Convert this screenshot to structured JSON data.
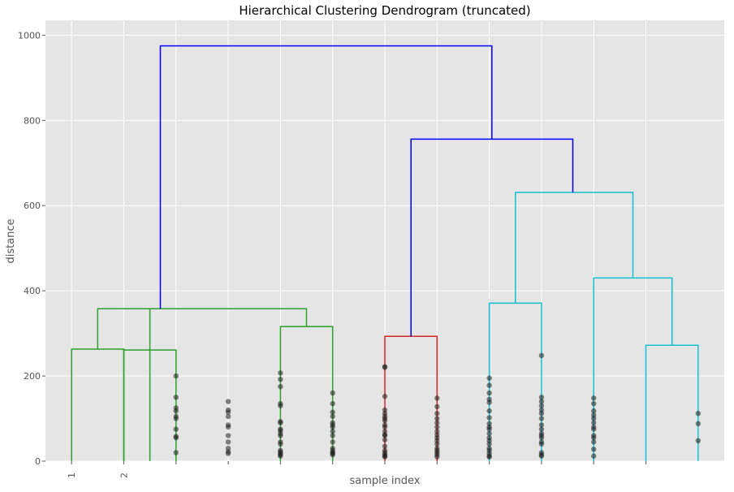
{
  "chart_data": {
    "type": "dendrogram",
    "title": "Hierarchical Clustering Dendrogram (truncated)",
    "xlabel": "sample index",
    "ylabel": "distance",
    "ylim": [
      0,
      1035
    ],
    "yticks": [
      0,
      200,
      400,
      600,
      800,
      1000
    ],
    "grid": true,
    "leaf_labels": [
      "1",
      "2",
      "",
      "",
      "",
      "",
      "",
      "",
      "",
      "",
      "",
      ""
    ],
    "links": [
      {
        "x": [
          5,
          5,
          15,
          15
        ],
        "y": [
          0,
          263,
          263,
          0
        ],
        "color": "#2ca02c"
      },
      {
        "x": [
          15,
          15,
          25,
          25
        ],
        "y": [
          0,
          261,
          261,
          0
        ],
        "color": "#2ca02c"
      },
      {
        "x": [
          10,
          10,
          20,
          20
        ],
        "y": [
          263,
          358,
          358,
          0
        ],
        "color": "#2ca02c"
      },
      {
        "x": [
          45,
          45,
          55,
          55
        ],
        "y": [
          0,
          316,
          316,
          0
        ],
        "color": "#2ca02c"
      },
      {
        "x": [
          20,
          20,
          50,
          50
        ],
        "y": [
          358,
          358,
          358,
          316
        ],
        "color": "#2ca02c"
      },
      {
        "x": [
          65,
          65,
          75,
          75
        ],
        "y": [
          0,
          293,
          293,
          0
        ],
        "color": "#d62728"
      },
      {
        "x": [
          85,
          85,
          95,
          95
        ],
        "y": [
          0,
          371,
          371,
          0
        ],
        "color": "#17becf"
      },
      {
        "x": [
          115,
          115,
          125,
          125
        ],
        "y": [
          0,
          272,
          272,
          0
        ],
        "color": "#17becf"
      },
      {
        "x": [
          105,
          105,
          120,
          120
        ],
        "y": [
          0,
          430,
          430,
          272
        ],
        "color": "#17becf"
      },
      {
        "x": [
          90,
          90,
          112.5,
          112.5
        ],
        "y": [
          371,
          631,
          631,
          430
        ],
        "color": "#17becf"
      },
      {
        "x": [
          70,
          70,
          101,
          101
        ],
        "y": [
          293,
          756,
          756,
          631
        ],
        "color": "#0000ff"
      },
      {
        "x": [
          22,
          22,
          85.5,
          85.5
        ],
        "y": [
          358,
          975,
          975,
          756
        ],
        "color": "#0000ff"
      }
    ],
    "leaf_points": [
      {
        "x": 25,
        "y": [
          200,
          150,
          125,
          118,
          105,
          100,
          75,
          58,
          55,
          20
        ]
      },
      {
        "x": 35,
        "y": [
          140,
          120,
          115,
          105,
          85,
          80,
          60,
          45,
          30,
          22,
          18
        ]
      },
      {
        "x": 45,
        "y": [
          207,
          192,
          175,
          135,
          130,
          93,
          90,
          75,
          72,
          65,
          60,
          45,
          40,
          25,
          22,
          18,
          15,
          12
        ]
      },
      {
        "x": 55,
        "y": [
          160,
          135,
          115,
          105,
          90,
          85,
          80,
          70,
          60,
          45,
          30,
          25,
          20,
          18,
          15
        ]
      },
      {
        "x": 65,
        "y": [
          222,
          220,
          152,
          120,
          112,
          105,
          100,
          95,
          85,
          80,
          70,
          62,
          60,
          50,
          35,
          25,
          20,
          15,
          12,
          10
        ]
      },
      {
        "x": 75,
        "y": [
          148,
          128,
          112,
          100,
          90,
          80,
          70,
          62,
          55,
          48,
          40,
          30,
          25,
          20,
          15,
          10
        ]
      },
      {
        "x": 85,
        "y": [
          195,
          178,
          160,
          145,
          138,
          118,
          102,
          88,
          80,
          75,
          65,
          55,
          48,
          40,
          30,
          25,
          18,
          12,
          10
        ]
      },
      {
        "x": 95,
        "y": [
          248,
          150,
          140,
          130,
          120,
          112,
          100,
          85,
          75,
          65,
          60,
          55,
          45,
          40,
          20,
          15,
          12
        ]
      },
      {
        "x": 105,
        "y": [
          148,
          135,
          118,
          108,
          100,
          90,
          80,
          75,
          60,
          55,
          45,
          28,
          12
        ]
      },
      {
        "x": 125,
        "y": [
          112,
          88,
          48
        ]
      }
    ],
    "xlim": [
      0,
      130
    ]
  }
}
